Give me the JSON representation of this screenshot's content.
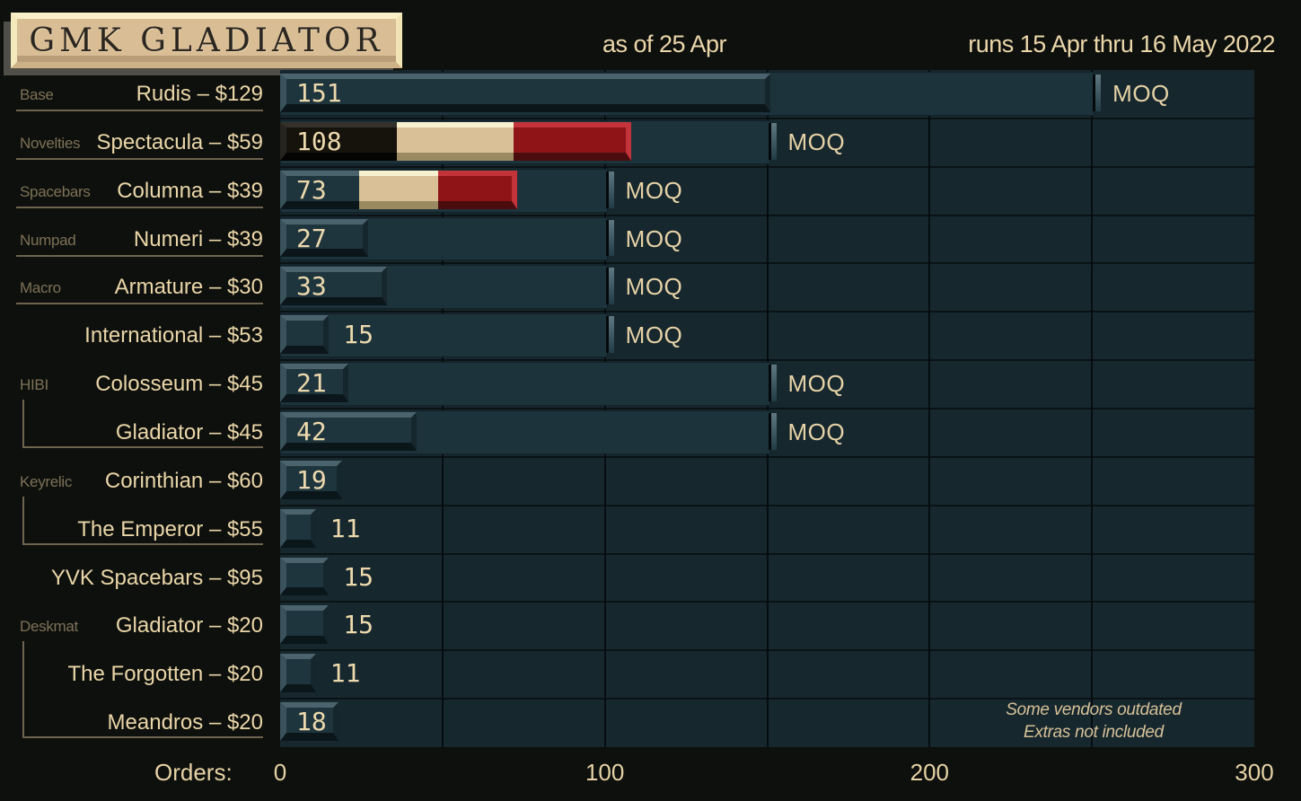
{
  "title": {
    "text": "GMK GLADIATOR"
  },
  "header": {
    "as_of": "as of 25 Apr",
    "runs": "runs 15 Apr thru 16 May 2022"
  },
  "moq_label": "MOQ",
  "footnote": {
    "line1": "Some vendors outdated",
    "line2": "Extras not included"
  },
  "axis": {
    "label": "Orders:"
  },
  "colors": {
    "page_bg": "#0e100d",
    "plot_bg": "#16272e",
    "backdrop": "#1d333c",
    "cream_text": "#ead6a9",
    "muted_prefix_text": "#7d7157",
    "value_text": "#ecd9ad",
    "underline": "#6e6350",
    "title_box_face": "#d9bd95",
    "title_box_frame": "#f6ebc3",
    "title_text": "#2b2620",
    "key_teal": "#1f353e",
    "key_black": "#16130d",
    "key_cream": "#d9c096",
    "key_red": "#8e1418"
  },
  "key_palettes": {
    "teal": {
      "top": "#4b636d",
      "left": "#3a525c",
      "body": "#1f353e",
      "right": "#16262d",
      "bottom": "#0b161b"
    },
    "black": {
      "top": "#33312a",
      "left": "#26241e",
      "body": "#16130d",
      "right": "#0b0a07",
      "bottom": "#040403"
    },
    "cream": {
      "top": "#f8f1cf",
      "left": "#ecdfb5",
      "body": "#d9c096",
      "right": "#b9a276",
      "bottom": "#9b8961"
    },
    "red": {
      "top": "#c2333a",
      "left": "#b52d34",
      "body": "#8e1418",
      "right": "#c2333a",
      "bottom": "#4a0c0d"
    }
  },
  "chart_data": {
    "type": "bar",
    "orientation": "horizontal",
    "title": "GMK GLADIATOR",
    "subtitle": "as of 25 Apr",
    "period": "runs 15 Apr thru 16 May 2022",
    "x_axis": {
      "label": "Orders:",
      "min": 0,
      "max": 300,
      "ticks": [
        0,
        100,
        200,
        300
      ],
      "gridline_step": 50
    },
    "moq_marker_label": "MOQ",
    "rows": [
      {
        "group": "Base",
        "label": "Rudis – $129",
        "value": 151,
        "moq": 250,
        "segments": [
          "teal"
        ]
      },
      {
        "group": "Novelties",
        "label": "Spectacula – $59",
        "value": 108,
        "moq": 150,
        "segments": [
          "black",
          "cream",
          "red"
        ]
      },
      {
        "group": "Spacebars",
        "label": "Columna – $39",
        "value": 73,
        "moq": 100,
        "segments": [
          "teal",
          "cream",
          "red"
        ]
      },
      {
        "group": "Numpad",
        "label": "Numeri – $39",
        "value": 27,
        "moq": 100,
        "segments": [
          "teal"
        ]
      },
      {
        "group": "Macro",
        "label": "Armature – $30",
        "value": 33,
        "moq": 100,
        "segments": [
          "teal"
        ]
      },
      {
        "group": null,
        "label": "International – $53",
        "value": 15,
        "moq": 100,
        "segments": [
          "teal"
        ]
      },
      {
        "group": "HIBI",
        "label": "Colosseum – $45",
        "value": 21,
        "moq": 150,
        "segments": [
          "teal"
        ]
      },
      {
        "group": "HIBI",
        "label": "Gladiator – $45",
        "value": 42,
        "moq": 150,
        "segments": [
          "teal"
        ]
      },
      {
        "group": "Keyrelic",
        "label": "Corinthian – $60",
        "value": 19,
        "moq": null,
        "segments": [
          "teal"
        ]
      },
      {
        "group": "Keyrelic",
        "label": "The Emperor – $55",
        "value": 11,
        "moq": null,
        "segments": [
          "teal"
        ]
      },
      {
        "group": null,
        "label": "YVK Spacebars – $95",
        "value": 15,
        "moq": null,
        "segments": [
          "teal"
        ]
      },
      {
        "group": "Deskmat",
        "label": "Gladiator – $20",
        "value": 15,
        "moq": null,
        "segments": [
          "teal"
        ]
      },
      {
        "group": "Deskmat",
        "label": "The Forgotten – $20",
        "value": 11,
        "moq": null,
        "segments": [
          "teal"
        ]
      },
      {
        "group": "Deskmat",
        "label": "Meandros – $20",
        "value": 18,
        "moq": null,
        "segments": [
          "teal"
        ]
      }
    ]
  }
}
